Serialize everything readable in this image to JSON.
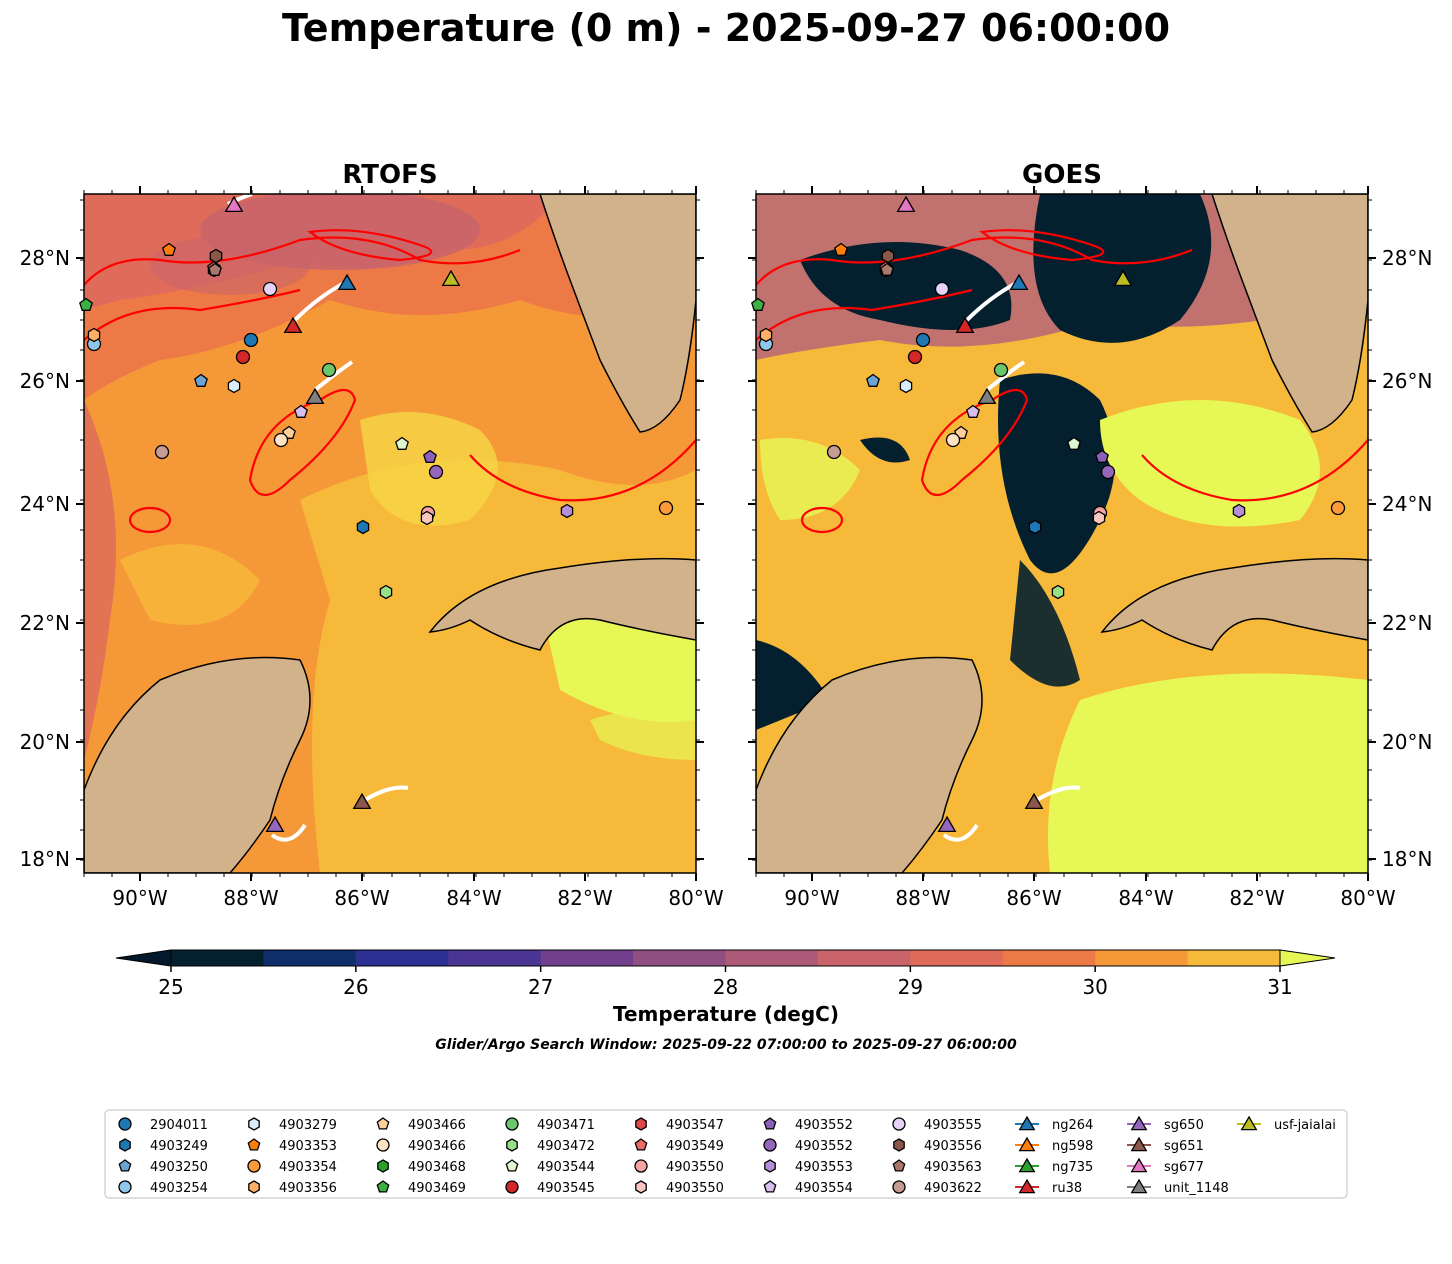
{
  "title": "Temperature (0 m) - 2025-09-27 06:00:00",
  "panels": [
    {
      "title": "RTOFS"
    },
    {
      "title": "GOES"
    }
  ],
  "axes": {
    "lat_ticks": [
      "28°N",
      "26°N",
      "24°N",
      "22°N",
      "20°N",
      "18°N"
    ],
    "lon_ticks": [
      "90°W",
      "88°W",
      "86°W",
      "84°W",
      "82°W",
      "80°W"
    ]
  },
  "colorbar": {
    "label": "Temperature (degC)",
    "ticks": [
      "25",
      "26",
      "27",
      "28",
      "29",
      "30",
      "31"
    ],
    "range": [
      25,
      31
    ],
    "step": 0.5,
    "colors": [
      "#04202f",
      "#0f2f6b",
      "#2c3093",
      "#4a3595",
      "#713f8b",
      "#8f4f80",
      "#ae5b7a",
      "#c9646b",
      "#df6b5a",
      "#ed7a46",
      "#f49838",
      "#f6b93a",
      "#f7d746"
    ],
    "over_color": "#e7f756",
    "under_color": "#03182a"
  },
  "search_window": "Glider/Argo Search Window: 2025-09-22 07:00:00 to 2025-09-27 06:00:00",
  "land_color": "#d1b28b",
  "contour_color": "#ff0000",
  "legend": [
    {
      "label": "2904011",
      "marker": "circle",
      "color": "#1f77b4"
    },
    {
      "label": "4903249",
      "marker": "hexagon",
      "color": "#1f77b4"
    },
    {
      "label": "4903250",
      "marker": "pentagon",
      "color": "#6ba3d6"
    },
    {
      "label": "4903254",
      "marker": "circle",
      "color": "#8fc7ea"
    },
    {
      "label": "4903279",
      "marker": "hexagon",
      "color": "#d8ecfb"
    },
    {
      "label": "4903353",
      "marker": "pentagon",
      "color": "#ff7f0e"
    },
    {
      "label": "4903354",
      "marker": "circle",
      "color": "#ff9a3a"
    },
    {
      "label": "4903356",
      "marker": "hexagon",
      "color": "#ffb066"
    },
    {
      "label": "4903466",
      "marker": "pentagon",
      "color": "#ffcf99"
    },
    {
      "label": "4903466",
      "marker": "circle",
      "color": "#ffe4c4"
    },
    {
      "label": "4903468",
      "marker": "hexagon",
      "color": "#2ca02c"
    },
    {
      "label": "4903469",
      "marker": "pentagon",
      "color": "#3cb043"
    },
    {
      "label": "4903471",
      "marker": "circle",
      "color": "#6cc66c"
    },
    {
      "label": "4903472",
      "marker": "hexagon",
      "color": "#98df8a"
    },
    {
      "label": "4903544",
      "marker": "pentagon",
      "color": "#dff7d0"
    },
    {
      "label": "4903545",
      "marker": "circle",
      "color": "#d62728"
    },
    {
      "label": "4903547",
      "marker": "hexagon",
      "color": "#e0474c"
    },
    {
      "label": "4903549",
      "marker": "pentagon",
      "color": "#ea6a6a"
    },
    {
      "label": "4903550",
      "marker": "circle",
      "color": "#f4a3a3"
    },
    {
      "label": "4903550",
      "marker": "hexagon",
      "color": "#f9c7c0"
    },
    {
      "label": "4903552",
      "marker": "pentagon",
      "color": "#8a60b8"
    },
    {
      "label": "4903552",
      "marker": "circle",
      "color": "#9467bd"
    },
    {
      "label": "4903553",
      "marker": "hexagon",
      "color": "#b58fd8"
    },
    {
      "label": "4903554",
      "marker": "pentagon",
      "color": "#d7bdf0"
    },
    {
      "label": "4903555",
      "marker": "circle",
      "color": "#e6d2f7"
    },
    {
      "label": "4903556",
      "marker": "hexagon",
      "color": "#8c564b"
    },
    {
      "label": "4903563",
      "marker": "pentagon",
      "color": "#a9776c"
    },
    {
      "label": "4903622",
      "marker": "circle",
      "color": "#c49c94"
    },
    {
      "label": "ng264",
      "marker": "triangle-line",
      "color": "#1f77b4"
    },
    {
      "label": "ng598",
      "marker": "triangle-line",
      "color": "#ff7f0e"
    },
    {
      "label": "ng735",
      "marker": "triangle-line",
      "color": "#2ca02c"
    },
    {
      "label": "ru38",
      "marker": "triangle-line",
      "color": "#d62728"
    },
    {
      "label": "sg650",
      "marker": "triangle-line",
      "color": "#9467bd"
    },
    {
      "label": "sg651",
      "marker": "triangle-line",
      "color": "#8c564b"
    },
    {
      "label": "sg677",
      "marker": "triangle-line",
      "color": "#e377c2"
    },
    {
      "label": "unit_1148",
      "marker": "triangle-line",
      "color": "#7f7f7f"
    },
    {
      "label": "usf-jaialai",
      "marker": "triangle-line",
      "color": "#bcbd22"
    }
  ]
}
